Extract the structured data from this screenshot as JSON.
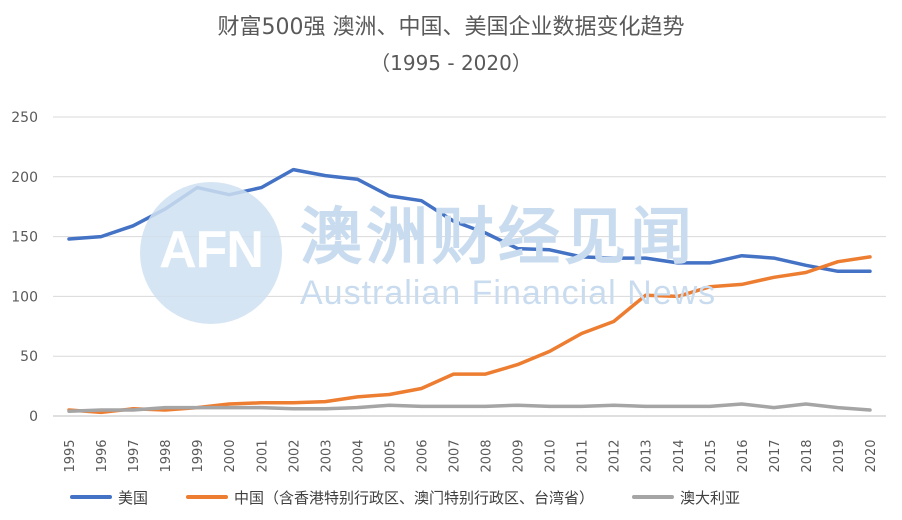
{
  "chart_data": {
    "type": "line",
    "title": "财富500强 澳洲、中国、美国企业数据变化趋势",
    "subtitle": "（1995 - 2020）",
    "xlabel": "",
    "ylabel": "",
    "ylim": [
      0,
      250
    ],
    "yticks": [
      0,
      50,
      100,
      150,
      200,
      250
    ],
    "grid": true,
    "legend_position": "bottom",
    "x": [
      "1995",
      "1996",
      "1997",
      "1998",
      "1999",
      "2000",
      "2001",
      "2002",
      "2003",
      "2004",
      "2005",
      "2006",
      "2007",
      "2008",
      "2009",
      "2010",
      "2011",
      "2012",
      "2013",
      "2014",
      "2015",
      "2016",
      "2017",
      "2018",
      "2019",
      "2020"
    ],
    "series": [
      {
        "name": "美国",
        "color": "#4472c4",
        "values": [
          148,
          150,
          159,
          173,
          191,
          185,
          191,
          206,
          201,
          198,
          184,
          180,
          163,
          153,
          140,
          139,
          133,
          132,
          132,
          128,
          128,
          134,
          132,
          126,
          121,
          121
        ]
      },
      {
        "name": "中国（含香港特别行政区、澳门特别行政区、台湾省）",
        "color": "#ed7d31",
        "values": [
          5,
          3,
          6,
          5,
          7,
          10,
          11,
          11,
          12,
          16,
          18,
          23,
          35,
          35,
          43,
          54,
          69,
          79,
          101,
          100,
          108,
          110,
          116,
          120,
          129,
          133
        ]
      },
      {
        "name": "澳大利亚",
        "color": "#a5a5a5",
        "values": [
          4,
          5,
          5,
          7,
          7,
          7,
          7,
          6,
          6,
          7,
          9,
          8,
          8,
          8,
          9,
          8,
          8,
          9,
          8,
          8,
          8,
          10,
          7,
          10,
          7,
          5
        ]
      }
    ]
  },
  "watermark": {
    "logo": "AFN",
    "name_cn": "澳洲财经见闻",
    "name_en": "Australian Financial News"
  }
}
